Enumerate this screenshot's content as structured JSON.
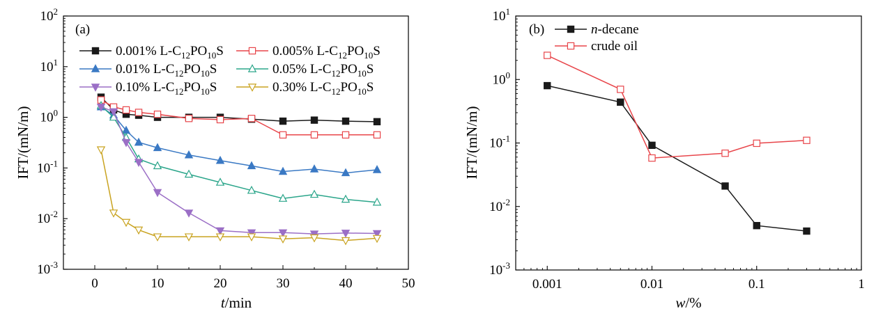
{
  "chart_data": [
    {
      "type": "line",
      "panel": "(a)",
      "xlabel_italic": "t",
      "xlabel_rest": "/min",
      "ylabel": "IFT/(mN/m)",
      "xscale": "linear",
      "yscale": "log",
      "xlim": [
        -5,
        50
      ],
      "ylim": [
        0.001,
        100
      ],
      "xticks": [
        0,
        10,
        20,
        30,
        40,
        50
      ],
      "xtick_labels": [
        "0",
        "10",
        "20",
        "30",
        "40",
        "50"
      ],
      "yticks": [
        0.001,
        0.01,
        0.1,
        1,
        10,
        100
      ],
      "ytick_base": "10",
      "ytick_exponents": [
        "-3",
        "-2",
        "-1",
        "0",
        "1",
        "2"
      ],
      "legend_placement": "top",
      "x": [
        1,
        3,
        5,
        7,
        10,
        15,
        20,
        25,
        30,
        35,
        40,
        45
      ],
      "series": [
        {
          "name": "0.001% L-C12PO10S",
          "label_parts": [
            "0.001% L-C",
            "12",
            "PO",
            "10",
            "S"
          ],
          "color": "#1a1a1a",
          "marker": "square",
          "filled": true,
          "values": [
            2.5,
            1.4,
            1.15,
            1.1,
            1.0,
            1.0,
            1.0,
            0.92,
            0.84,
            0.88,
            0.84,
            0.82
          ]
        },
        {
          "name": "0.005% L-C12PO10S",
          "label_parts": [
            "0.005% L-C",
            "12",
            "PO",
            "10",
            "S"
          ],
          "color": "#e8454a",
          "marker": "square",
          "filled": false,
          "values": [
            2.2,
            1.6,
            1.4,
            1.25,
            1.15,
            0.95,
            0.9,
            0.95,
            0.45,
            0.45,
            0.45,
            0.45
          ]
        },
        {
          "name": "0.01% L-C12PO10S",
          "label_parts": [
            "0.01% L-C",
            "12",
            "PO",
            "10",
            "S"
          ],
          "color": "#3a79c4",
          "marker": "triangle-up",
          "filled": true,
          "values": [
            1.6,
            1.1,
            0.55,
            0.32,
            0.25,
            0.18,
            0.14,
            0.11,
            0.085,
            0.095,
            0.08,
            0.092
          ]
        },
        {
          "name": "0.05% L-C12PO10S",
          "label_parts": [
            "0.05% L-C",
            "12",
            "PO",
            "10",
            "S"
          ],
          "color": "#2aa58a",
          "marker": "triangle-up",
          "filled": false,
          "values": [
            1.7,
            1.0,
            0.4,
            0.15,
            0.11,
            0.075,
            0.052,
            0.036,
            0.025,
            0.03,
            0.024,
            0.021
          ]
        },
        {
          "name": "0.10% L-C12PO10S",
          "label_parts": [
            "0.10% L-C",
            "12",
            "PO",
            "10",
            "S"
          ],
          "color": "#9b6fc6",
          "marker": "triangle-down",
          "filled": true,
          "values": [
            1.6,
            1.3,
            0.32,
            0.13,
            0.033,
            0.013,
            0.0058,
            0.0053,
            0.0053,
            0.005,
            0.0052,
            0.0051
          ]
        },
        {
          "name": "0.30% L-C12PO10S",
          "label_parts": [
            "0.30% L-C",
            "12",
            "PO",
            "10",
            "S"
          ],
          "color": "#c9a320",
          "marker": "triangle-down",
          "filled": false,
          "values": [
            0.23,
            0.013,
            0.0085,
            0.006,
            0.0044,
            0.0044,
            0.0044,
            0.0044,
            0.004,
            0.0042,
            0.0037,
            0.0041
          ]
        }
      ]
    },
    {
      "type": "line",
      "panel": "(b)",
      "xlabel_italic": "w",
      "xlabel_rest": "/%",
      "ylabel": "IFT/(mN/m)",
      "xscale": "log",
      "yscale": "log",
      "xlim": [
        0.0005,
        1
      ],
      "ylim": [
        0.001,
        10
      ],
      "xticks": [
        0.001,
        0.01,
        0.1,
        1
      ],
      "xtick_labels": [
        "0.001",
        "0.01",
        "0.1",
        "1"
      ],
      "yticks": [
        0.001,
        0.01,
        0.1,
        1,
        10
      ],
      "ytick_base": "10",
      "ytick_exponents": [
        "-3",
        "-2",
        "-1",
        "0",
        "1"
      ],
      "legend_placement": "top-left",
      "x": [
        0.001,
        0.005,
        0.01,
        0.05,
        0.1,
        0.3
      ],
      "series": [
        {
          "name": "n-decane",
          "label_italic": "n",
          "label_rest": "-decane",
          "color": "#1a1a1a",
          "marker": "square",
          "filled": true,
          "values": [
            0.8,
            0.44,
            0.092,
            0.021,
            0.005,
            0.0041
          ]
        },
        {
          "name": "crude oil",
          "label_italic": "",
          "label_rest": "crude oil",
          "color": "#e8454a",
          "marker": "square",
          "filled": false,
          "values": [
            2.4,
            0.7,
            0.058,
            0.069,
            0.099,
            0.11
          ]
        }
      ]
    }
  ]
}
